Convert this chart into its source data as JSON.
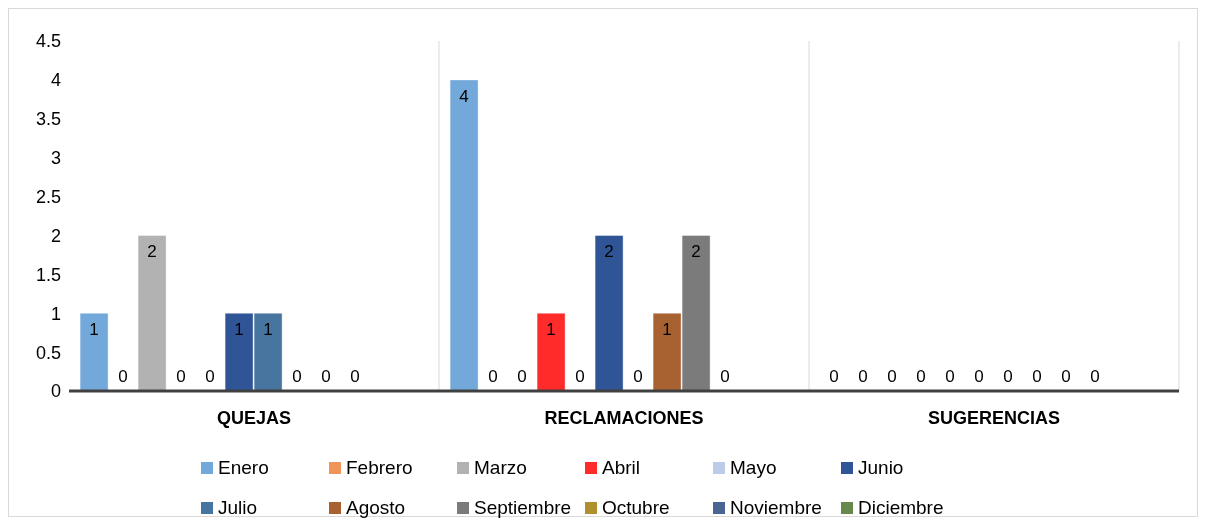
{
  "chart_data": {
    "type": "bar",
    "categories": [
      "QUEJAS",
      "RECLAMACIONES",
      "SUGERENCIAS"
    ],
    "series": [
      {
        "name": "Enero",
        "color": "#72a8da",
        "values": [
          1,
          4,
          0
        ]
      },
      {
        "name": "Febrero",
        "color": "#f0955a",
        "values": [
          0,
          0,
          0
        ]
      },
      {
        "name": "Marzo",
        "color": "#b2b2b2",
        "values": [
          2,
          0,
          0
        ]
      },
      {
        "name": "Abril",
        "color": "#ff2a2a",
        "values": [
          0,
          1,
          0
        ]
      },
      {
        "name": "Mayo",
        "color": "#bccce8",
        "values": [
          0,
          0,
          0
        ]
      },
      {
        "name": "Junio",
        "color": "#2f5597",
        "values": [
          1,
          2,
          0
        ]
      },
      {
        "name": "Julio",
        "color": "#47759f",
        "values": [
          1,
          0,
          0
        ]
      },
      {
        "name": "Agosto",
        "color": "#a86130",
        "values": [
          0,
          1,
          0
        ]
      },
      {
        "name": "Septiembre",
        "color": "#7b7b7b",
        "values": [
          0,
          2,
          0
        ]
      },
      {
        "name": "Octubre",
        "color": "#b08f2c",
        "values": [
          0,
          0,
          0
        ]
      },
      {
        "name": "Noviembre",
        "color": "#4a6494",
        "values": [
          null,
          null,
          null
        ]
      },
      {
        "name": "Diciembre",
        "color": "#64894a",
        "values": [
          null,
          null,
          null
        ]
      }
    ],
    "ylim": [
      0,
      4.5
    ],
    "yticks": [
      0,
      0.5,
      1,
      1.5,
      2,
      2.5,
      3,
      3.5,
      4,
      4.5
    ],
    "grid": "x",
    "legend": "bottom",
    "data_labels": true
  }
}
